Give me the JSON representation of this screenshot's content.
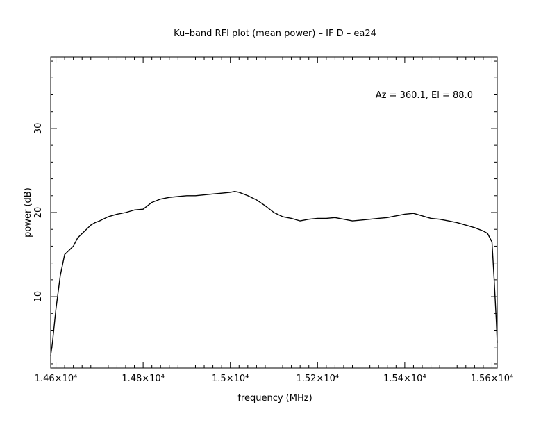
{
  "chart_data": {
    "type": "line",
    "title": "Ku–band RFI plot (mean power) – IF D – ea24",
    "xlabel": "frequency (MHz)",
    "ylabel": "power (dB)",
    "annotation": "Az = 360.1, El = 88.0",
    "xlim": [
      14588,
      15612
    ],
    "ylim": [
      1.5,
      38.5
    ],
    "x_ticks": [
      {
        "value": 14600,
        "label": "1.46×10⁴"
      },
      {
        "value": 14800,
        "label": "1.48×10⁴"
      },
      {
        "value": 15000,
        "label": "1.5×10⁴"
      },
      {
        "value": 15200,
        "label": "1.52×10⁴"
      },
      {
        "value": 15400,
        "label": "1.54×10⁴"
      },
      {
        "value": 15600,
        "label": "1.56×10⁴"
      }
    ],
    "y_ticks": [
      {
        "value": 10,
        "label": "10"
      },
      {
        "value": 20,
        "label": "20"
      },
      {
        "value": 30,
        "label": "30"
      }
    ],
    "grid": false,
    "series": [
      {
        "color": "#000000",
        "x": [
          14588,
          14592,
          14600,
          14610,
          14620,
          14630,
          14640,
          14650,
          14660,
          14670,
          14680,
          14690,
          14700,
          14720,
          14740,
          14760,
          14780,
          14800,
          14810,
          14820,
          14840,
          14860,
          14880,
          14900,
          14920,
          14940,
          14960,
          14980,
          15000,
          15010,
          15020,
          15030,
          15040,
          15060,
          15080,
          15100,
          15120,
          15140,
          15160,
          15180,
          15200,
          15220,
          15240,
          15260,
          15280,
          15300,
          15320,
          15340,
          15360,
          15380,
          15400,
          15420,
          15440,
          15460,
          15480,
          15500,
          15520,
          15540,
          15560,
          15580,
          15590,
          15600,
          15605,
          15610,
          15612
        ],
        "y": [
          3.0,
          4.5,
          8.5,
          12.5,
          15.0,
          15.5,
          16.0,
          17.0,
          17.5,
          18.0,
          18.5,
          18.8,
          19.0,
          19.5,
          19.8,
          20.0,
          20.3,
          20.4,
          20.8,
          21.2,
          21.6,
          21.8,
          21.9,
          22.0,
          22.0,
          22.1,
          22.2,
          22.3,
          22.4,
          22.5,
          22.4,
          22.2,
          22.0,
          21.5,
          20.8,
          20.0,
          19.5,
          19.3,
          19.0,
          19.2,
          19.3,
          19.3,
          19.4,
          19.2,
          19.0,
          19.1,
          19.2,
          19.3,
          19.4,
          19.6,
          19.8,
          19.9,
          19.6,
          19.3,
          19.2,
          19.0,
          18.8,
          18.5,
          18.2,
          17.8,
          17.5,
          16.5,
          12.0,
          7.0,
          4.5
        ]
      }
    ]
  }
}
